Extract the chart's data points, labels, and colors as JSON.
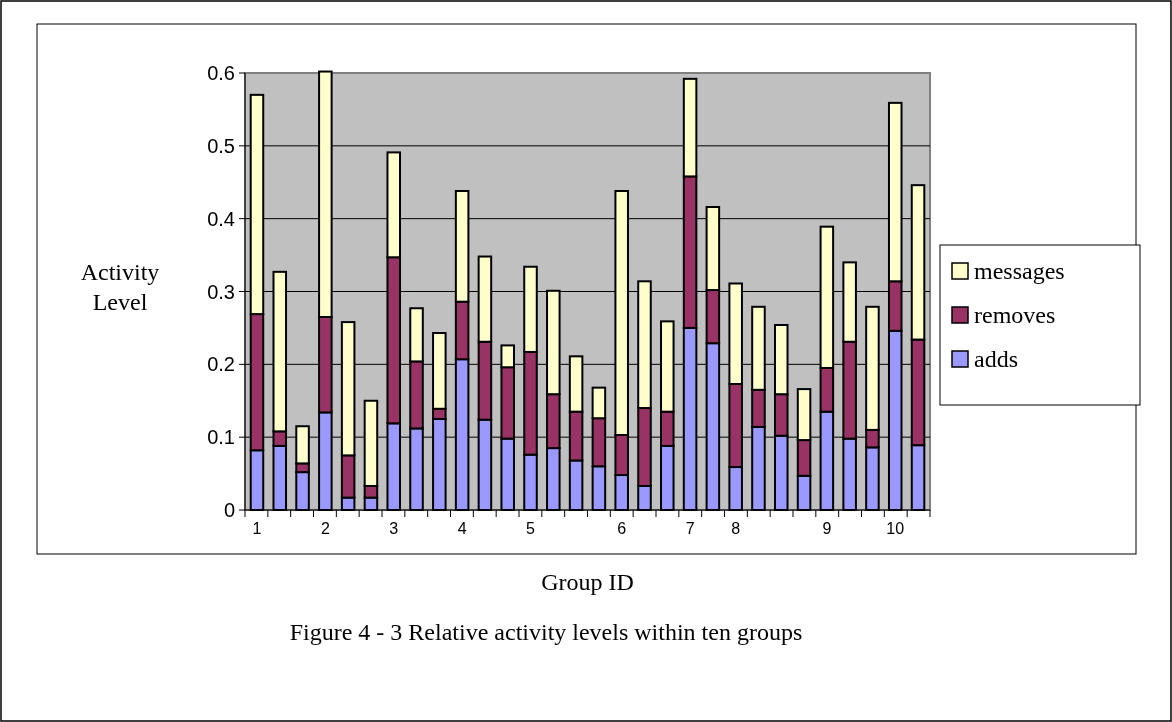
{
  "chart_data": {
    "type": "bar",
    "stacked": true,
    "xlabel": "Group ID",
    "ylabel": "Activity Level",
    "annotations": [
      "Figure 4 - 3 Relative activity levels within ten groups"
    ],
    "categories": [
      "1",
      null,
      null,
      "2",
      null,
      null,
      "3",
      null,
      null,
      "4",
      null,
      null,
      "5",
      null,
      null,
      null,
      "6",
      null,
      null,
      "7",
      null,
      "8",
      null,
      null,
      null,
      "9",
      null,
      null,
      "10",
      null
    ],
    "series": [
      {
        "name": "adds",
        "color": "#9999ff",
        "values": [
          0.082,
          0.088,
          0.052,
          0.134,
          0.017,
          0.017,
          0.119,
          0.112,
          0.125,
          0.207,
          0.124,
          0.098,
          0.076,
          0.085,
          0.068,
          0.06,
          0.048,
          0.033,
          0.088,
          0.25,
          0.229,
          0.059,
          0.114,
          0.102,
          0.047,
          0.135,
          0.098,
          0.086,
          0.246,
          0.089
        ]
      },
      {
        "name": "removes",
        "color": "#993366",
        "values": [
          0.187,
          0.02,
          0.012,
          0.131,
          0.058,
          0.016,
          0.228,
          0.092,
          0.014,
          0.079,
          0.107,
          0.098,
          0.141,
          0.074,
          0.067,
          0.066,
          0.055,
          0.107,
          0.047,
          0.208,
          0.073,
          0.114,
          0.051,
          0.057,
          0.049,
          0.06,
          0.133,
          0.024,
          0.068,
          0.145
        ]
      },
      {
        "name": "messages",
        "color": "#ffffcc",
        "values": [
          0.301,
          0.219,
          0.051,
          0.337,
          0.183,
          0.117,
          0.144,
          0.073,
          0.104,
          0.152,
          0.117,
          0.03,
          0.117,
          0.142,
          0.076,
          0.042,
          0.335,
          0.174,
          0.124,
          0.134,
          0.114,
          0.138,
          0.114,
          0.095,
          0.07,
          0.194,
          0.109,
          0.169,
          0.245,
          0.212
        ]
      }
    ],
    "ylim": [
      0,
      0.6
    ],
    "yticks": [
      0,
      0.1,
      0.2,
      0.3,
      0.4,
      0.5,
      0.6
    ],
    "grid": "y",
    "legend": "right"
  }
}
